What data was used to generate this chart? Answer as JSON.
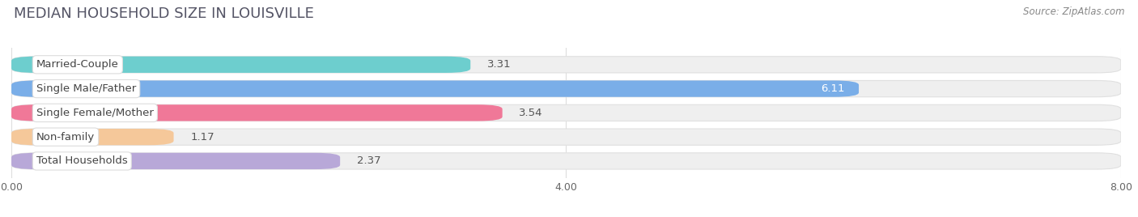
{
  "title": "MEDIAN HOUSEHOLD SIZE IN LOUISVILLE",
  "source": "Source: ZipAtlas.com",
  "categories": [
    "Married-Couple",
    "Single Male/Father",
    "Single Female/Mother",
    "Non-family",
    "Total Households"
  ],
  "values": [
    3.31,
    6.11,
    3.54,
    1.17,
    2.37
  ],
  "bar_colors": [
    "#6dcece",
    "#7aaee8",
    "#f07898",
    "#f5c89a",
    "#b8a8d8"
  ],
  "bar_bg_color": "#efefef",
  "bar_bg_edge": "#e0e0e0",
  "xlim": [
    0,
    8.0
  ],
  "xticks": [
    0.0,
    4.0,
    8.0
  ],
  "xtick_labels": [
    "0.00",
    "4.00",
    "8.00"
  ],
  "title_fontsize": 13,
  "label_fontsize": 9.5,
  "value_fontsize": 9.5,
  "bg_color": "#ffffff",
  "value_color_inside": "#ffffff",
  "value_color_outside": "#555555",
  "bar_height": 0.68,
  "bar_gap": 0.32,
  "rounding": 0.18
}
